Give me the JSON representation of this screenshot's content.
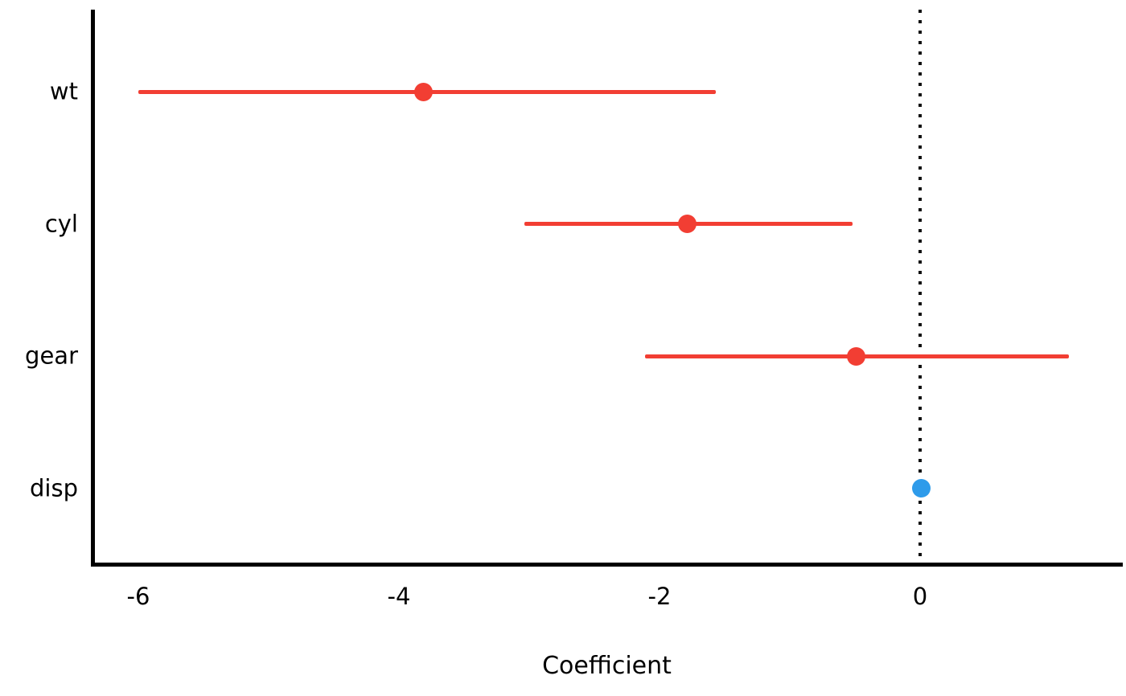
{
  "figure": {
    "background": "#FFFFFF",
    "axis_color": "#000000"
  },
  "chart_data": {
    "type": "scatter",
    "subtype": "dot-whisker-coefficient-plot",
    "title": "",
    "xlabel": "Coefficient",
    "ylabel": "",
    "x_ticks": [
      -6,
      -4,
      -2,
      0
    ],
    "xlim": [
      -6.36,
      1.56
    ],
    "grid": "off",
    "legend": "none",
    "reference_line": {
      "x": 0,
      "style": "dotted",
      "color": "#111111"
    },
    "colors": {
      "negative_significant": "#F23E33",
      "near_zero": "#2E9BEA"
    },
    "categories": [
      "wt",
      "cyl",
      "gear",
      "disp"
    ],
    "terms": [
      {
        "label": "wt",
        "estimate": -3.81,
        "ci_low": -6.0,
        "ci_high": -1.57,
        "color": "#F23E33"
      },
      {
        "label": "cyl",
        "estimate": -1.79,
        "ci_low": -3.04,
        "ci_high": -0.52,
        "color": "#F23E33"
      },
      {
        "label": "gear",
        "estimate": -0.49,
        "ci_low": -2.11,
        "ci_high": 1.14,
        "color": "#F23E33"
      },
      {
        "label": "disp",
        "estimate": 0.01,
        "ci_low": 0.01,
        "ci_high": 0.01,
        "color": "#2E9BEA"
      }
    ]
  }
}
